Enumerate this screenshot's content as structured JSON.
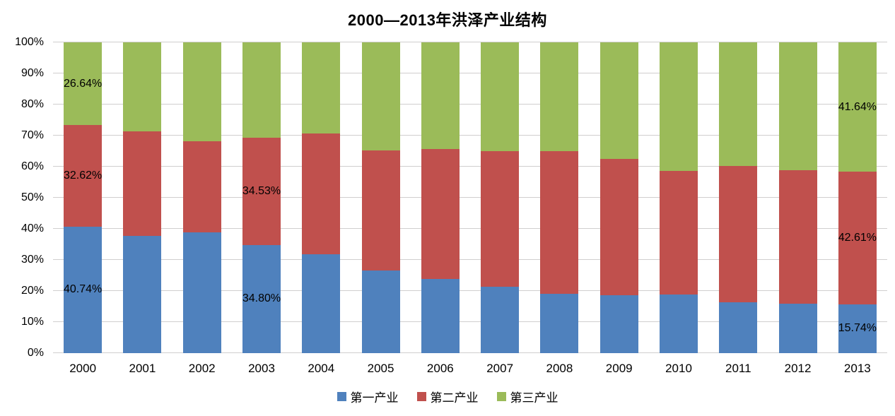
{
  "chart_data": {
    "type": "bar",
    "stacked": "100%",
    "title": "2000—2013年洪泽产业结构",
    "categories": [
      "2000",
      "2001",
      "2002",
      "2003",
      "2004",
      "2005",
      "2006",
      "2007",
      "2008",
      "2009",
      "2010",
      "2011",
      "2012",
      "2013"
    ],
    "series": [
      {
        "name": "第一产业",
        "color": "#4F81BD",
        "values": [
          40.74,
          37.7,
          38.8,
          34.8,
          31.8,
          26.5,
          23.9,
          21.3,
          19.0,
          18.6,
          18.8,
          16.4,
          16.0,
          15.74
        ]
      },
      {
        "name": "第二产业",
        "color": "#C0504D",
        "values": [
          32.62,
          33.6,
          29.3,
          34.53,
          38.8,
          38.8,
          41.7,
          43.7,
          46.1,
          43.9,
          39.9,
          43.8,
          42.9,
          42.61
        ]
      },
      {
        "name": "第三产业",
        "color": "#9BBB59",
        "values": [
          26.64,
          28.7,
          31.9,
          30.67,
          29.4,
          34.7,
          34.4,
          35.0,
          34.9,
          37.5,
          41.3,
          39.8,
          41.1,
          41.64
        ]
      }
    ],
    "data_labels": [
      {
        "category": "2000",
        "series": "第三产业",
        "text": "26.64%"
      },
      {
        "category": "2000",
        "series": "第二产业",
        "text": "32.62%"
      },
      {
        "category": "2000",
        "series": "第一产业",
        "text": "40.74%"
      },
      {
        "category": "2003",
        "series": "第二产业",
        "text": "34.53%"
      },
      {
        "category": "2003",
        "series": "第一产业",
        "text": "34.80%"
      },
      {
        "category": "2013",
        "series": "第三产业",
        "text": "41.64%"
      },
      {
        "category": "2013",
        "series": "第二产业",
        "text": "42.61%"
      },
      {
        "category": "2013",
        "series": "第一产业",
        "text": "15.74%"
      }
    ],
    "y_axis": {
      "min": 0,
      "max": 100,
      "step": 10,
      "tick_labels": [
        "0%",
        "10%",
        "20%",
        "30%",
        "40%",
        "50%",
        "60%",
        "70%",
        "80%",
        "90%",
        "100%"
      ]
    },
    "legend": {
      "position": "bottom",
      "entries": [
        "第一产业",
        "第二产业",
        "第三产业"
      ]
    },
    "grid": true,
    "gridline_color": "#D0CECE",
    "background": "#FFFFFF",
    "text_color": "#000000"
  }
}
